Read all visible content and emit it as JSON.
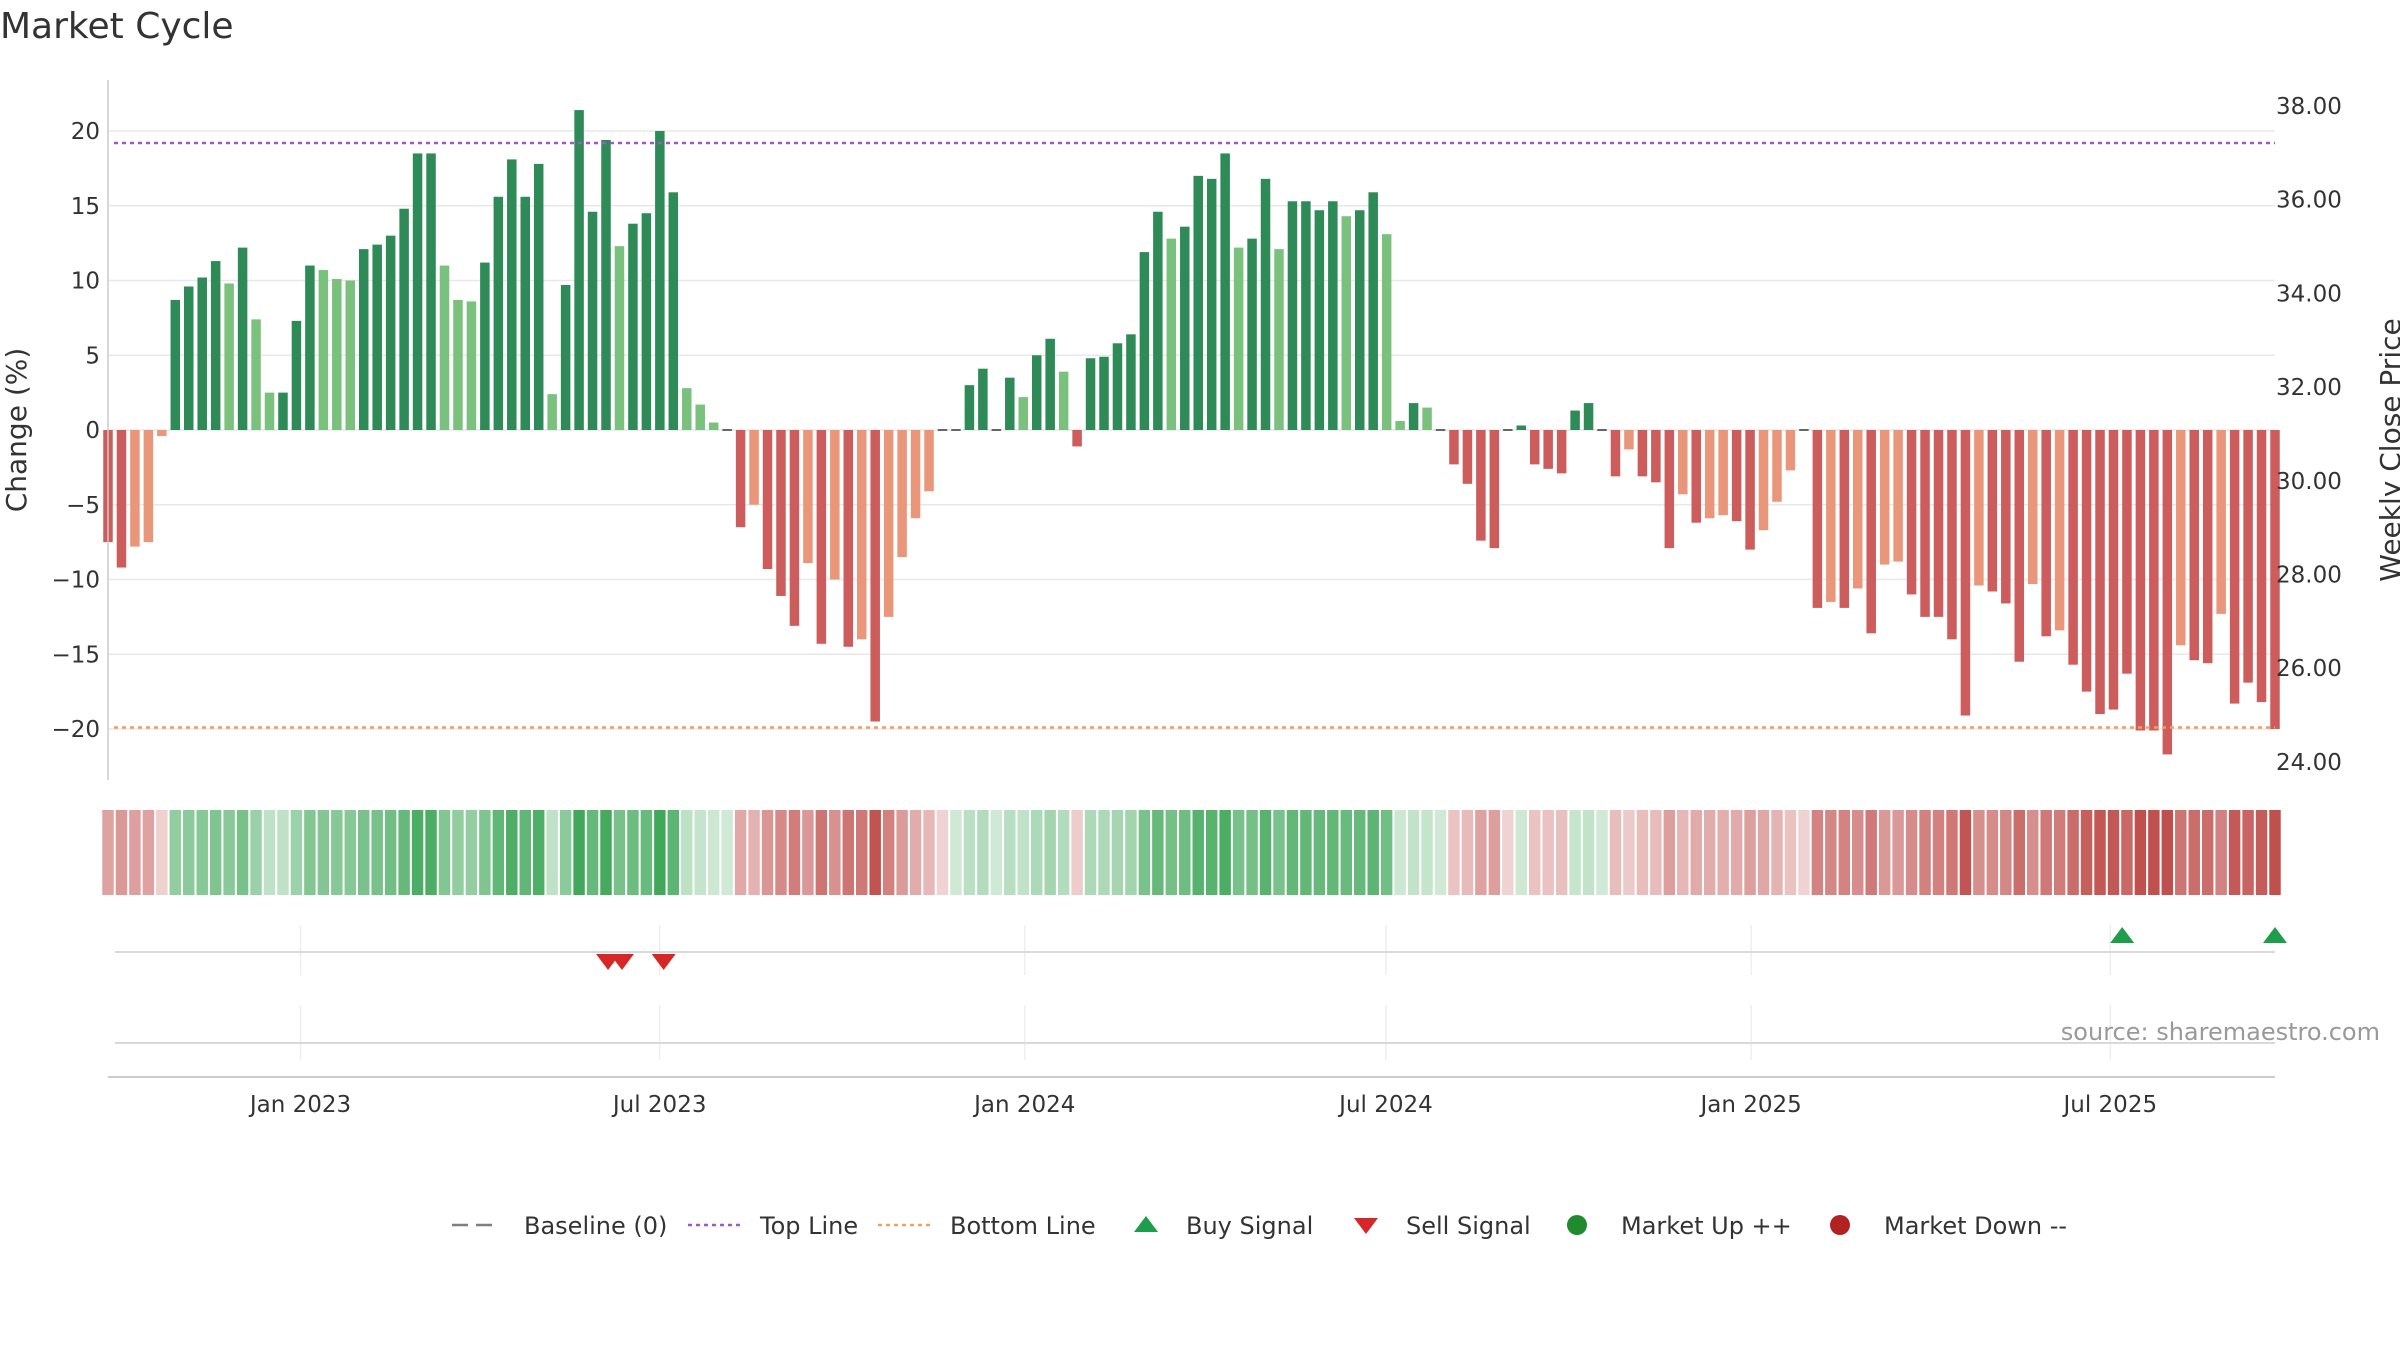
{
  "chart_data": {
    "type": "bar",
    "title": "Market Cycle",
    "ylabel": "Change (%)",
    "y2label": "Weekly Close Price",
    "ylim": [
      -23.5,
      23.5
    ],
    "y2lim": [
      23.5,
      38.5
    ],
    "yticks": [
      "20",
      "15",
      "10",
      "5",
      "0",
      "−5",
      "−10",
      "−15",
      "−20"
    ],
    "yticks_values": [
      20,
      15,
      10,
      5,
      0,
      -5,
      -10,
      -15,
      -20
    ],
    "y2ticks": [
      "38.00",
      "36.00",
      "34.00",
      "32.00",
      "30.00",
      "28.00",
      "26.00",
      "24.00"
    ],
    "y2ticks_values": [
      38,
      36,
      34,
      32,
      30,
      28,
      26,
      24
    ],
    "x_range": [
      "2022-09-26",
      "2025-09-22"
    ],
    "xticks": [
      {
        "date": "2023-01-01",
        "label": "Jan 2023"
      },
      {
        "date": "2023-07-01",
        "label": "Jul 2023"
      },
      {
        "date": "2024-01-01",
        "label": "Jan 2024"
      },
      {
        "date": "2024-07-01",
        "label": "Jul 2024"
      },
      {
        "date": "2025-01-01",
        "label": "Jan 2025"
      },
      {
        "date": "2025-07-01",
        "label": "Jul 2025"
      }
    ],
    "top_line": 19.2,
    "bottom_line": -19.9,
    "baseline": 0,
    "start_week": "2022-09-26",
    "weekly_change": [
      -7.5,
      -9.2,
      -7.8,
      -7.5,
      -0.4,
      8.7,
      9.6,
      10.2,
      11.3,
      9.8,
      12.2,
      7.4,
      2.5,
      2.5,
      7.3,
      11.0,
      10.7,
      10.1,
      10.0,
      12.1,
      12.4,
      13.0,
      14.8,
      18.5,
      18.5,
      11.0,
      8.7,
      8.6,
      11.2,
      15.6,
      18.1,
      15.6,
      17.8,
      2.4,
      9.7,
      21.4,
      14.6,
      19.4,
      12.3,
      13.8,
      14.5,
      20.0,
      15.9,
      2.8,
      1.7,
      0.5,
      0,
      -6.5,
      -5.0,
      -9.3,
      -11.1,
      -13.1,
      -8.9,
      -14.3,
      -10.0,
      -14.5,
      -14.0,
      -19.5,
      -12.5,
      -8.5,
      -5.9,
      -4.1,
      0,
      0,
      3.0,
      4.1,
      0,
      3.5,
      2.2,
      5.0,
      6.1,
      3.9,
      -1.1,
      4.8,
      4.9,
      5.8,
      6.4,
      11.9,
      14.6,
      12.8,
      13.6,
      17.0,
      16.8,
      18.5,
      12.2,
      12.8,
      16.8,
      12.1,
      15.3,
      15.3,
      14.7,
      15.3,
      14.3,
      14.7,
      15.9,
      13.1,
      0.6,
      1.8,
      1.5,
      0,
      -2.3,
      -3.6,
      -7.4,
      -7.9,
      0,
      0.3,
      -2.3,
      -2.6,
      -2.9,
      1.3,
      1.8,
      0,
      -3.1,
      -1.3,
      -3.1,
      -3.5,
      -7.9,
      -4.3,
      -6.2,
      -5.9,
      -5.7,
      -6.1,
      -8.0,
      -6.7,
      -4.8,
      -2.7,
      0,
      -11.9,
      -11.5,
      -11.9,
      -10.6,
      -13.6,
      -9.0,
      -8.8,
      -11.0,
      -12.5,
      -12.5,
      -14.0,
      -19.1,
      -10.4,
      -10.8,
      -11.6,
      -15.5,
      -10.3,
      -13.8,
      -13.4,
      -15.7,
      -17.5,
      -19.0,
      -18.7,
      -16.3,
      -20.1,
      -20.1,
      -21.7,
      -14.4,
      -15.4,
      -15.6,
      -12.3,
      -18.3,
      -16.9,
      -18.2,
      -20.0
    ],
    "sell_signals": [
      "2023-06-05",
      "2023-06-12",
      "2023-07-03"
    ],
    "buy_signals": [
      "2025-07-07",
      "2025-09-22"
    ],
    "legend": [
      {
        "label": "Baseline (0)",
        "marker": "dash",
        "color": "#7f7f7f"
      },
      {
        "label": "Top Line",
        "marker": "dotted",
        "color": "#a259c7"
      },
      {
        "label": "Bottom Line",
        "marker": "dotted",
        "color": "#f0a060"
      },
      {
        "label": "Buy Signal",
        "marker": "triangle-up",
        "color": "#1e9d4a"
      },
      {
        "label": "Sell Signal",
        "marker": "triangle-down",
        "color": "#d62728"
      },
      {
        "label": "Market Up ++",
        "marker": "circle",
        "color": "#208a2e"
      },
      {
        "label": "Market Down --",
        "marker": "circle",
        "color": "#b22222"
      }
    ],
    "colors": {
      "up_strong": "#2e8b57",
      "up_light": "#7bc17e",
      "down_strong": "#cd5c5c",
      "down_light": "#e9967a",
      "heat_green": "#41a85a",
      "heat_red": "#c0504d",
      "grid": "#e8e8e8",
      "axis": "#cccccc",
      "signal_line": "#d9d9d9"
    },
    "grid": true,
    "legend_position": "bottom"
  },
  "source_text": "source: sharemaestro.com"
}
